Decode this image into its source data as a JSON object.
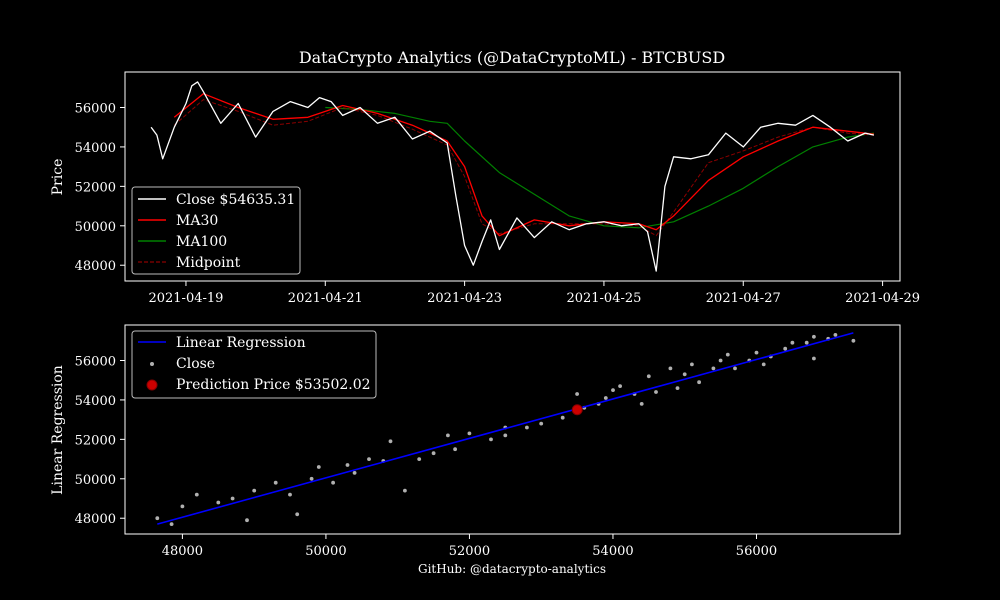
{
  "title": "DataCrypto Analytics (@DataCryptoML) - BTCBUSD",
  "footer": "GitHub: @datacrypto-analytics",
  "colors": {
    "background": "#000000",
    "close": "#ffffff",
    "ma30": "#ff0000",
    "ma100": "#008000",
    "midpoint": "#8b0000",
    "regression": "#0000ff",
    "scatter": "#b0b0b0",
    "prediction": "#cc0000"
  },
  "chart_data": [
    {
      "type": "line",
      "ylabel": "Price",
      "xlabel": "",
      "x_ticks": [
        "2021-04-19",
        "2021-04-21",
        "2021-04-23",
        "2021-04-25",
        "2021-04-27",
        "2021-04-29"
      ],
      "y_ticks": [
        48000,
        50000,
        52000,
        54000,
        56000
      ],
      "xlim": [
        "2021-04-18T03:00",
        "2021-04-29T06:00"
      ],
      "ylim": [
        47200,
        57800
      ],
      "legend_position": "lower-left",
      "legend": [
        "Close $54635.31",
        "MA30",
        "MA100",
        "Midpoint"
      ],
      "series": [
        {
          "name": "Close $54635.31",
          "x": [
            "2021-04-18T12:00",
            "2021-04-18T14:00",
            "2021-04-18T16:00",
            "2021-04-18T20:00",
            "2021-04-19T00:00",
            "2021-04-19T02:00",
            "2021-04-19T04:00",
            "2021-04-19T06:00",
            "2021-04-19T12:00",
            "2021-04-19T18:00",
            "2021-04-20T00:00",
            "2021-04-20T06:00",
            "2021-04-20T12:00",
            "2021-04-20T18:00",
            "2021-04-20T22:00",
            "2021-04-21T02:00",
            "2021-04-21T06:00",
            "2021-04-21T12:00",
            "2021-04-21T18:00",
            "2021-04-22T00:00",
            "2021-04-22T06:00",
            "2021-04-22T12:00",
            "2021-04-22T18:00",
            "2021-04-22T21:00",
            "2021-04-23T00:00",
            "2021-04-23T03:00",
            "2021-04-23T06:00",
            "2021-04-23T09:00",
            "2021-04-23T12:00",
            "2021-04-23T18:00",
            "2021-04-24T00:00",
            "2021-04-24T06:00",
            "2021-04-24T12:00",
            "2021-04-24T18:00",
            "2021-04-25T00:00",
            "2021-04-25T06:00",
            "2021-04-25T12:00",
            "2021-04-25T15:00",
            "2021-04-25T18:00",
            "2021-04-25T21:00",
            "2021-04-26T00:00",
            "2021-04-26T06:00",
            "2021-04-26T12:00",
            "2021-04-26T18:00",
            "2021-04-27T00:00",
            "2021-04-27T06:00",
            "2021-04-27T12:00",
            "2021-04-27T18:00",
            "2021-04-28T00:00",
            "2021-04-28T06:00",
            "2021-04-28T12:00",
            "2021-04-28T18:00",
            "2021-04-28T21:00"
          ],
          "y": [
            55000,
            54600,
            53400,
            55000,
            56200,
            57100,
            57300,
            56800,
            55200,
            56200,
            54500,
            55800,
            56300,
            56000,
            56500,
            56300,
            55600,
            56000,
            55200,
            55500,
            54400,
            54800,
            54200,
            51500,
            49000,
            48000,
            49200,
            50300,
            48800,
            50400,
            49400,
            50200,
            49800,
            50100,
            50200,
            50000,
            50100,
            49700,
            47700,
            52000,
            53500,
            53400,
            53600,
            54700,
            54000,
            55000,
            55200,
            55100,
            55600,
            55000,
            54300,
            54700,
            54600
          ]
        },
        {
          "name": "MA30",
          "x": [
            "2021-04-18T20:00",
            "2021-04-19T06:00",
            "2021-04-19T18:00",
            "2021-04-20T06:00",
            "2021-04-20T18:00",
            "2021-04-21T06:00",
            "2021-04-21T18:00",
            "2021-04-22T06:00",
            "2021-04-22T18:00",
            "2021-04-23T00:00",
            "2021-04-23T06:00",
            "2021-04-23T12:00",
            "2021-04-24T00:00",
            "2021-04-24T12:00",
            "2021-04-25T00:00",
            "2021-04-25T12:00",
            "2021-04-25T18:00",
            "2021-04-26T00:00",
            "2021-04-26T12:00",
            "2021-04-27T00:00",
            "2021-04-27T12:00",
            "2021-04-28T00:00",
            "2021-04-28T12:00",
            "2021-04-28T21:00"
          ],
          "y": [
            55500,
            56700,
            56000,
            55400,
            55500,
            56100,
            55700,
            55100,
            54300,
            53000,
            50500,
            49500,
            50300,
            50000,
            50200,
            50100,
            49800,
            50500,
            52300,
            53500,
            54300,
            55000,
            54800,
            54650
          ]
        },
        {
          "name": "MA100",
          "x": [
            "2021-04-21T00:00",
            "2021-04-21T12:00",
            "2021-04-22T00:00",
            "2021-04-22T12:00",
            "2021-04-22T18:00",
            "2021-04-23T00:00",
            "2021-04-23T12:00",
            "2021-04-24T00:00",
            "2021-04-24T12:00",
            "2021-04-25T00:00",
            "2021-04-25T12:00",
            "2021-04-26T00:00",
            "2021-04-26T12:00",
            "2021-04-27T00:00",
            "2021-04-27T12:00",
            "2021-04-28T00:00",
            "2021-04-28T12:00",
            "2021-04-28T21:00"
          ],
          "y": [
            56000,
            55900,
            55700,
            55300,
            55200,
            54300,
            52700,
            51600,
            50500,
            50000,
            49900,
            50200,
            51000,
            51900,
            53000,
            54000,
            54500,
            54700
          ]
        },
        {
          "name": "Midpoint",
          "x": [
            "2021-04-18T20:00",
            "2021-04-19T06:00",
            "2021-04-19T18:00",
            "2021-04-20T06:00",
            "2021-04-20T18:00",
            "2021-04-21T06:00",
            "2021-04-21T18:00",
            "2021-04-22T06:00",
            "2021-04-22T18:00",
            "2021-04-23T00:00",
            "2021-04-23T06:00",
            "2021-04-23T12:00",
            "2021-04-24T00:00",
            "2021-04-24T12:00",
            "2021-04-25T00:00",
            "2021-04-25T12:00",
            "2021-04-25T18:00",
            "2021-04-26T00:00",
            "2021-04-26T12:00",
            "2021-04-27T00:00",
            "2021-04-27T12:00",
            "2021-04-28T00:00",
            "2021-04-28T12:00",
            "2021-04-28T21:00"
          ],
          "y": [
            55100,
            56400,
            55800,
            55100,
            55300,
            56000,
            55600,
            54900,
            54100,
            52500,
            50100,
            49600,
            50100,
            50100,
            50100,
            50000,
            49500,
            50700,
            53200,
            53800,
            54500,
            55000,
            54700,
            54600
          ]
        }
      ]
    },
    {
      "type": "scatter",
      "ylabel": "Linear Regression",
      "xlabel": "",
      "x_ticks": [
        48000,
        50000,
        52000,
        54000,
        56000
      ],
      "y_ticks": [
        48000,
        50000,
        52000,
        54000,
        56000
      ],
      "xlim": [
        47200,
        58000
      ],
      "ylim": [
        47200,
        57800
      ],
      "legend_position": "upper-left",
      "legend": [
        "Linear Regression",
        "Close",
        "Prediction Price $53502.02"
      ],
      "regression_line": {
        "name": "Linear Regression",
        "x": [
          47650,
          57350
        ],
        "y": [
          47700,
          57400
        ]
      },
      "scatter_series": {
        "name": "Close",
        "points": [
          [
            47650,
            48000
          ],
          [
            47850,
            47700
          ],
          [
            48000,
            48600
          ],
          [
            48200,
            49200
          ],
          [
            48500,
            48800
          ],
          [
            48700,
            49000
          ],
          [
            48900,
            47900
          ],
          [
            49000,
            49400
          ],
          [
            49300,
            49800
          ],
          [
            49500,
            49200
          ],
          [
            49600,
            48200
          ],
          [
            49800,
            50000
          ],
          [
            49900,
            50600
          ],
          [
            50100,
            49800
          ],
          [
            50300,
            50700
          ],
          [
            50400,
            50300
          ],
          [
            50600,
            51000
          ],
          [
            50800,
            50900
          ],
          [
            50900,
            51900
          ],
          [
            51100,
            49400
          ],
          [
            51300,
            51000
          ],
          [
            51500,
            51300
          ],
          [
            51700,
            52200
          ],
          [
            51800,
            51500
          ],
          [
            52000,
            52300
          ],
          [
            52300,
            52000
          ],
          [
            52500,
            52600
          ],
          [
            52500,
            52200
          ],
          [
            52800,
            52600
          ],
          [
            53000,
            52800
          ],
          [
            53300,
            53100
          ],
          [
            53500,
            54300
          ],
          [
            53600,
            53600
          ],
          [
            53800,
            53800
          ],
          [
            53900,
            54100
          ],
          [
            54000,
            54500
          ],
          [
            54100,
            54700
          ],
          [
            54300,
            54300
          ],
          [
            54400,
            53800
          ],
          [
            54500,
            55200
          ],
          [
            54600,
            54400
          ],
          [
            54800,
            55600
          ],
          [
            54900,
            54600
          ],
          [
            55000,
            55300
          ],
          [
            55100,
            55800
          ],
          [
            55200,
            54900
          ],
          [
            55400,
            55600
          ],
          [
            55500,
            56000
          ],
          [
            55600,
            56300
          ],
          [
            55700,
            55600
          ],
          [
            55900,
            56000
          ],
          [
            56000,
            56400
          ],
          [
            56100,
            55800
          ],
          [
            56200,
            56200
          ],
          [
            56400,
            56600
          ],
          [
            56500,
            56900
          ],
          [
            56700,
            56900
          ],
          [
            56800,
            56100
          ],
          [
            56800,
            57200
          ],
          [
            57000,
            57100
          ],
          [
            57100,
            57300
          ],
          [
            57350,
            57000
          ]
        ]
      },
      "prediction": {
        "name": "Prediction Price $53502.02",
        "x": 53502.02,
        "y": 53502.02
      }
    }
  ]
}
